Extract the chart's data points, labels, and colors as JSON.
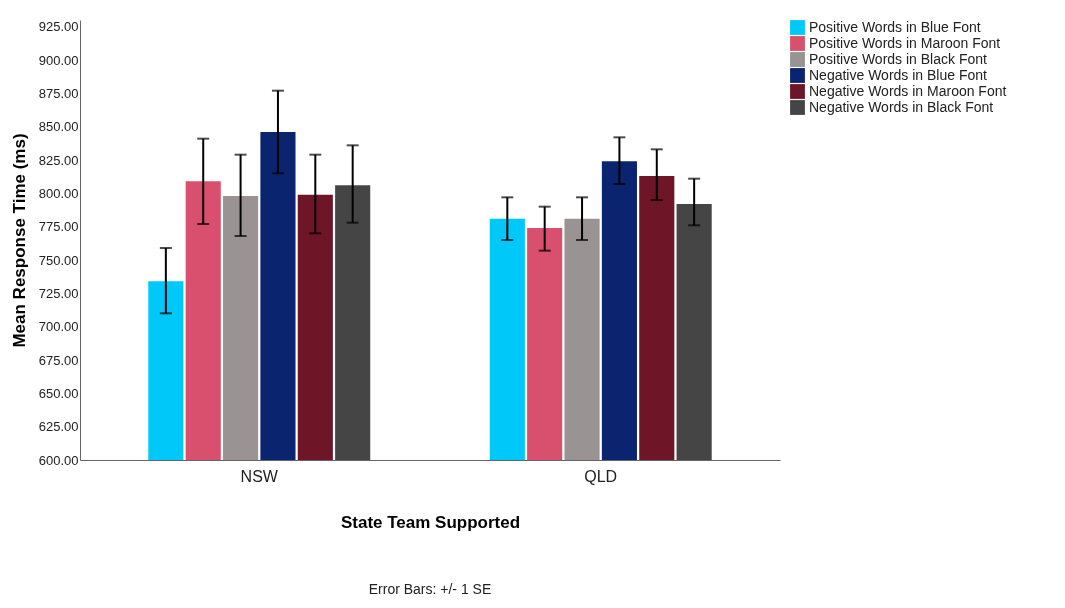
{
  "chart_data": {
    "type": "bar",
    "categories": [
      "NSW",
      "QLD"
    ],
    "xlabel": "State Team Supported",
    "ylabel": "Mean Response Time (ms)",
    "ylim": [
      600,
      930
    ],
    "yticks": [
      {
        "value": 600,
        "label": "600.00"
      },
      {
        "value": 625,
        "label": "625.00"
      },
      {
        "value": 650,
        "label": "650.00"
      },
      {
        "value": 675,
        "label": "675.00"
      },
      {
        "value": 700,
        "label": "700.00"
      },
      {
        "value": 725,
        "label": "725.00"
      },
      {
        "value": 750,
        "label": "750.00"
      },
      {
        "value": 775,
        "label": "775.00"
      },
      {
        "value": 800,
        "label": "800.00"
      },
      {
        "value": 825,
        "label": "825.00"
      },
      {
        "value": 850,
        "label": "850.00"
      },
      {
        "value": 875,
        "label": "875.00"
      },
      {
        "value": 900,
        "label": "900.00"
      },
      {
        "value": 925,
        "label": "925.00"
      }
    ],
    "series": [
      {
        "name": "Positive Words in Blue Font",
        "color": "#00c8f8",
        "values": [
          734,
          781
        ],
        "errors": [
          [
            710,
            759
          ],
          [
            765,
            797
          ]
        ]
      },
      {
        "name": "Positive Words in Maroon Font",
        "color": "#d9506e",
        "values": [
          809,
          774
        ],
        "errors": [
          [
            777,
            841
          ],
          [
            757,
            790
          ]
        ]
      },
      {
        "name": "Positive Words in Black Font",
        "color": "#999393",
        "values": [
          798,
          781
        ],
        "errors": [
          [
            768,
            829
          ],
          [
            765,
            797
          ]
        ]
      },
      {
        "name": "Negative Words in Blue Font",
        "color": "#0a2470",
        "values": [
          846,
          824
        ],
        "errors": [
          [
            815,
            877
          ],
          [
            807,
            842
          ]
        ]
      },
      {
        "name": "Negative Words in Maroon Font",
        "color": "#6e1628",
        "values": [
          799,
          813
        ],
        "errors": [
          [
            770,
            829
          ],
          [
            795,
            833
          ]
        ]
      },
      {
        "name": "Negative Words in Black Font",
        "color": "#454545",
        "values": [
          806,
          792
        ],
        "errors": [
          [
            778,
            836
          ],
          [
            776,
            811
          ]
        ]
      }
    ],
    "legend": "top right",
    "grid": false,
    "annotations": [
      "Error Bars: +/- 1 SE"
    ]
  }
}
